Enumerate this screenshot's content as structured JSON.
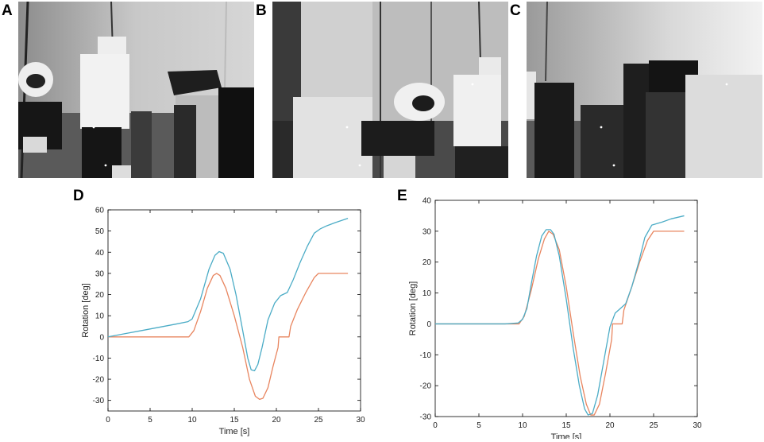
{
  "panels": {
    "a": "A",
    "b": "B",
    "c": "C",
    "d": "D",
    "e": "E"
  },
  "photos": [
    {
      "name": "robot-scene-a"
    },
    {
      "name": "robot-scene-b"
    },
    {
      "name": "robot-scene-c"
    }
  ],
  "colors": {
    "measured": "#4bacc6",
    "reference": "#e8855f"
  },
  "chart_data": [
    {
      "type": "line",
      "panel": "D",
      "xlabel": "Time [s]",
      "ylabel": "Rotation [deg]",
      "xlim": [
        0,
        30
      ],
      "ylim": [
        -35,
        60
      ],
      "xticks": [
        0,
        5,
        10,
        15,
        20,
        25,
        30
      ],
      "yticks": [
        -30,
        -20,
        -10,
        0,
        10,
        20,
        30,
        40,
        50,
        60
      ],
      "series": [
        {
          "color": "#4bacc6",
          "x": [
            0,
            2,
            4,
            6,
            8,
            9.5,
            10,
            11,
            12,
            12.7,
            13.2,
            13.7,
            14.5,
            15.2,
            16,
            16.6,
            17,
            17.4,
            17.8,
            18.3,
            19,
            19.8,
            20.5,
            21.3,
            22,
            22.8,
            23.7,
            24.5,
            25.2,
            26,
            27,
            28.5
          ],
          "y": [
            0,
            1.5,
            3,
            4.5,
            6,
            7.2,
            8.5,
            18,
            32,
            38.5,
            40.3,
            39.5,
            32,
            20,
            3,
            -10,
            -15.5,
            -16,
            -13,
            -5,
            8,
            16,
            19.5,
            21,
            27,
            35,
            43,
            49,
            51,
            52.5,
            54,
            56
          ]
        },
        {
          "color": "#e8855f",
          "x": [
            0,
            4,
            8,
            9.6,
            10.2,
            11,
            11.8,
            12.5,
            12.9,
            13.3,
            14,
            15,
            16,
            16.8,
            17.5,
            18,
            18.4,
            19,
            19.6,
            20.2,
            20.3,
            21.5,
            21.7,
            22.5,
            23.5,
            24.5,
            25,
            26,
            27,
            28.5
          ],
          "y": [
            0,
            0,
            0,
            0,
            3,
            12,
            23,
            29,
            30,
            29,
            23,
            10,
            -5,
            -20,
            -28,
            -29.5,
            -29,
            -24,
            -14,
            -5,
            0,
            0,
            5,
            13,
            21,
            28,
            30,
            30,
            30,
            30
          ]
        }
      ]
    },
    {
      "type": "line",
      "panel": "E",
      "xlabel": "Time [s]",
      "ylabel": "Rotation [deg]",
      "xlim": [
        0,
        30
      ],
      "ylim": [
        -30,
        40
      ],
      "xticks": [
        0,
        5,
        10,
        15,
        20,
        25,
        30
      ],
      "yticks": [
        -30,
        -20,
        -10,
        0,
        10,
        20,
        30,
        40
      ],
      "series": [
        {
          "color": "#4bacc6",
          "x": [
            0,
            4,
            8,
            9.5,
            10,
            10.5,
            11,
            11.6,
            12.2,
            12.7,
            13.2,
            13.6,
            14.2,
            15,
            15.8,
            16.5,
            17.1,
            17.5,
            18,
            18.6,
            19.3,
            20,
            20.6,
            21.2,
            21.8,
            22.5,
            23.3,
            24,
            24.8,
            26,
            27,
            28.5
          ],
          "y": [
            0,
            0,
            0,
            0.3,
            1.5,
            5,
            13,
            22,
            28.5,
            30.5,
            30.5,
            29,
            22,
            8,
            -8,
            -20,
            -27.5,
            -29.5,
            -29,
            -23,
            -12,
            -1,
            3.5,
            5,
            6.5,
            12,
            20,
            28,
            32,
            33,
            34,
            35
          ]
        },
        {
          "color": "#e8855f",
          "x": [
            0,
            4,
            8,
            9.6,
            10.2,
            11,
            11.8,
            12.5,
            13,
            13.5,
            14.2,
            15,
            15.8,
            16.6,
            17.3,
            17.8,
            18.2,
            18.8,
            19.5,
            20.2,
            20.3,
            21.4,
            21.6,
            22.5,
            23.4,
            24.3,
            25,
            26,
            27,
            28.5
          ],
          "y": [
            0,
            0,
            0,
            0,
            2.5,
            11,
            21,
            27.5,
            30,
            29,
            24,
            12,
            -3,
            -17,
            -26,
            -29.5,
            -29.5,
            -26,
            -16,
            -5,
            0,
            0,
            4.5,
            12,
            20,
            27,
            30,
            30,
            30,
            30
          ]
        }
      ]
    }
  ]
}
